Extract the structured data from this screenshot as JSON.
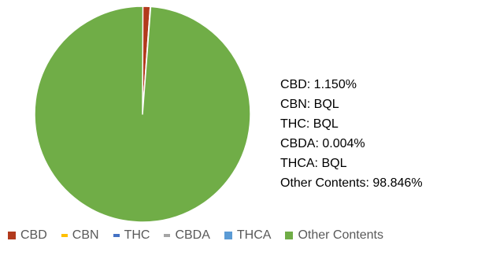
{
  "chart_data": {
    "type": "pie",
    "title": "",
    "slices": [
      {
        "name": "CBD",
        "value": 1.15,
        "label": "CBD: 1.150%",
        "color": "#b23a1d"
      },
      {
        "name": "CBN",
        "value": 0,
        "label": "CBN: BQL",
        "color": "#ffc000"
      },
      {
        "name": "THC",
        "value": 0,
        "label": "THC: BQL",
        "color": "#4472c4"
      },
      {
        "name": "CBDA",
        "value": 0.004,
        "label": "CBDA: 0.004%",
        "color": "#a5a5a5"
      },
      {
        "name": "THCA",
        "value": 0,
        "label": "THCA: BQL",
        "color": "#5b9bd5"
      },
      {
        "name": "Other Contents",
        "value": 98.846,
        "label": "Other Contents: 98.846%",
        "color": "#70ad47"
      }
    ],
    "legend": {
      "placement": "bottom",
      "entries": [
        "CBD",
        "CBN",
        "THC",
        "CBDA",
        "THCA",
        "Other Contents"
      ]
    }
  }
}
